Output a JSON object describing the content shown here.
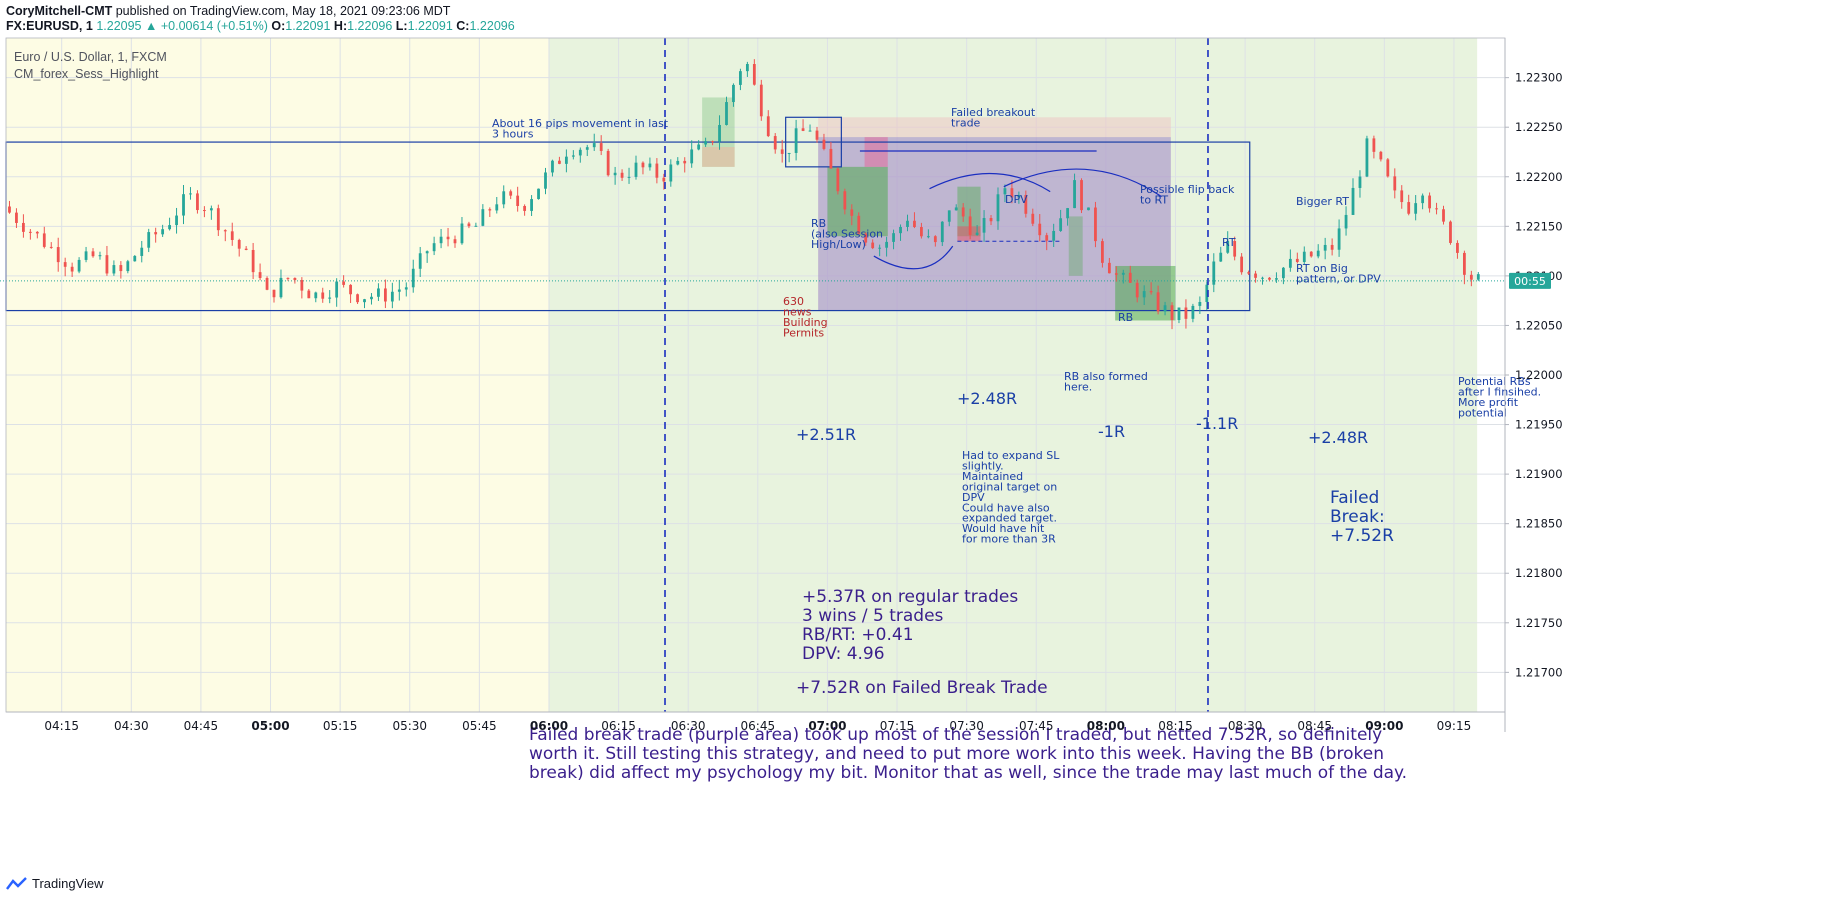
{
  "header": {
    "publisher": "CoryMitchell-CMT",
    "published_text": "published on TradingView.com, May 18, 2021 09:23:06 MDT",
    "symbol": "FX:EURUSD, 1",
    "last": "1.22095",
    "change": "+0.00614 (+0.51%)",
    "o_label": "O:",
    "o": "1.22091",
    "h_label": "H:",
    "h": "1.22096",
    "l_label": "L:",
    "l": "1.22091",
    "c_label": "C:",
    "c": "1.22096"
  },
  "legend": {
    "instrument": "Euro / U.S. Dollar, 1, FXCM",
    "indicator": "CM_forex_Sess_Highlight"
  },
  "footer": {
    "brand": "TradingView"
  },
  "countdown": "00:55",
  "colors": {
    "session_pre": "#fdfce4",
    "session_main": "#e8f3de",
    "candle_up": "#26a69a",
    "candle_down": "#ef5350",
    "annotation_blue": "#1a3fa6",
    "annotation_purple": "#3a1f8c",
    "annotation_red": "#b5262a"
  },
  "chart_data": {
    "type": "candlestick",
    "interval": "1 minute",
    "ylim": [
      1.2166,
      1.2234
    ],
    "yticks": [
      1.223,
      1.2225,
      1.222,
      1.2215,
      1.221,
      1.2205,
      1.22,
      1.2195,
      1.219,
      1.2185,
      1.218,
      1.2175,
      1.217
    ],
    "ytick_labels": [
      "1.22300",
      "1.22250",
      "1.22200",
      "1.22150",
      "1.22100",
      "1.22050",
      "1.22000",
      "1.21950",
      "1.21900",
      "1.21850",
      "1.21800",
      "1.21750",
      "1.21700"
    ],
    "xlim": [
      "04:03",
      "09:26"
    ],
    "xticks": [
      "04:15",
      "04:30",
      "04:45",
      "05:00",
      "05:15",
      "05:30",
      "05:45",
      "06:00",
      "06:15",
      "06:30",
      "06:45",
      "07:00",
      "07:15",
      "07:30",
      "07:45",
      "08:00",
      "08:15",
      "08:30",
      "08:45",
      "09:00",
      "09:15"
    ],
    "current_price": 1.22095,
    "sessions": [
      {
        "from": "04:03",
        "to": "06:00",
        "shade": "pre"
      },
      {
        "from": "06:00",
        "to": "09:20",
        "shade": "main"
      }
    ],
    "price_path": [
      [
        "04:03",
        1.2217
      ],
      [
        "04:08",
        1.2215
      ],
      [
        "04:13",
        1.2213
      ],
      [
        "04:18",
        1.2211
      ],
      [
        "04:23",
        1.2212
      ],
      [
        "04:28",
        1.221
      ],
      [
        "04:33",
        1.2213
      ],
      [
        "04:38",
        1.2215
      ],
      [
        "04:43",
        1.2218
      ],
      [
        "04:47",
        1.2217
      ],
      [
        "04:52",
        1.2214
      ],
      [
        "04:57",
        1.2211
      ],
      [
        "05:00",
        1.2208
      ],
      [
        "05:05",
        1.221
      ],
      [
        "05:10",
        1.2208
      ],
      [
        "05:15",
        1.2209
      ],
      [
        "05:20",
        1.2208
      ],
      [
        "05:25",
        1.2208
      ],
      [
        "05:30",
        1.2209
      ],
      [
        "05:35",
        1.2213
      ],
      [
        "05:40",
        1.2214
      ],
      [
        "05:45",
        1.2215
      ],
      [
        "05:50",
        1.2218
      ],
      [
        "05:55",
        1.2217
      ],
      [
        "06:00",
        1.222
      ],
      [
        "06:05",
        1.2223
      ],
      [
        "06:10",
        1.2223
      ],
      [
        "06:15",
        1.222
      ],
      [
        "06:20",
        1.2221
      ],
      [
        "06:25",
        1.222
      ],
      [
        "06:30",
        1.2222
      ],
      [
        "06:35",
        1.2223
      ],
      [
        "06:38",
        1.2226
      ],
      [
        "06:41",
        1.223
      ],
      [
        "06:43",
        1.2232
      ],
      [
        "06:45",
        1.2229
      ],
      [
        "06:48",
        1.2225
      ],
      [
        "06:51",
        1.2222
      ],
      [
        "06:54",
        1.2224
      ],
      [
        "06:57",
        1.2225
      ],
      [
        "07:00",
        1.2222
      ],
      [
        "07:03",
        1.2219
      ],
      [
        "07:06",
        1.2216
      ],
      [
        "07:09",
        1.2214
      ],
      [
        "07:12",
        1.2213
      ],
      [
        "07:15",
        1.2214
      ],
      [
        "07:18",
        1.2216
      ],
      [
        "07:21",
        1.2214
      ],
      [
        "07:24",
        1.2213
      ],
      [
        "07:27",
        1.2217
      ],
      [
        "07:30",
        1.2216
      ],
      [
        "07:33",
        1.2214
      ],
      [
        "07:36",
        1.2216
      ],
      [
        "07:39",
        1.2219
      ],
      [
        "07:42",
        1.2218
      ],
      [
        "07:45",
        1.2216
      ],
      [
        "07:48",
        1.2214
      ],
      [
        "07:51",
        1.2216
      ],
      [
        "07:54",
        1.2219
      ],
      [
        "07:57",
        1.2216
      ],
      [
        "08:00",
        1.2212
      ],
      [
        "08:03",
        1.221
      ],
      [
        "08:06",
        1.2209
      ],
      [
        "08:09",
        1.2208
      ],
      [
        "08:12",
        1.2207
      ],
      [
        "08:15",
        1.2206
      ],
      [
        "08:18",
        1.2206
      ],
      [
        "08:21",
        1.2207
      ],
      [
        "08:24",
        1.2211
      ],
      [
        "08:27",
        1.2213
      ],
      [
        "08:30",
        1.2211
      ],
      [
        "08:35",
        1.221
      ],
      [
        "08:40",
        1.2211
      ],
      [
        "08:45",
        1.2212
      ],
      [
        "08:50",
        1.2213
      ],
      [
        "08:53",
        1.2217
      ],
      [
        "08:55",
        1.222
      ],
      [
        "08:57",
        1.2223
      ],
      [
        "09:00",
        1.2221
      ],
      [
        "09:03",
        1.2218
      ],
      [
        "09:06",
        1.2217
      ],
      [
        "09:09",
        1.2219
      ],
      [
        "09:12",
        1.2216
      ],
      [
        "09:15",
        1.2214
      ],
      [
        "09:18",
        1.2211
      ],
      [
        "09:20",
        1.22095
      ]
    ],
    "levels": [
      {
        "label": "",
        "price": 1.22235,
        "from": "04:03",
        "to": "08:31",
        "color": "#1a3fa6"
      },
      {
        "label": "",
        "price": 1.22065,
        "from": "04:03",
        "to": "08:31",
        "color": "#1a3fa6"
      }
    ],
    "zones": [
      {
        "from": "06:33",
        "to": "06:40",
        "top": 1.2228,
        "bottom": 1.2221,
        "color": "rgba(140,200,140,0.45)"
      },
      {
        "from": "06:33",
        "to": "06:40",
        "top": 1.2223,
        "bottom": 1.2221,
        "color": "rgba(239,180,160,0.55)"
      },
      {
        "from": "06:58",
        "to": "08:14",
        "top": 1.2226,
        "bottom": 1.22065,
        "color": "rgba(239,190,190,0.45)"
      },
      {
        "from": "06:58",
        "to": "08:14",
        "top": 1.2224,
        "bottom": 1.22065,
        "color": "rgba(120,120,210,0.38)"
      },
      {
        "from": "07:00",
        "to": "07:13",
        "top": 1.2221,
        "bottom": 1.2214,
        "color": "rgba(80,170,80,0.55)"
      },
      {
        "from": "07:08",
        "to": "07:13",
        "top": 1.2224,
        "bottom": 1.2221,
        "color": "rgba(230,100,150,0.5)"
      },
      {
        "from": "07:28",
        "to": "07:33",
        "top": 1.2219,
        "bottom": 1.2214,
        "color": "rgba(80,170,80,0.45)"
      },
      {
        "from": "07:28",
        "to": "07:33",
        "top": 1.2215,
        "bottom": 1.22135,
        "color": "rgba(230,80,100,0.5)"
      },
      {
        "from": "07:52",
        "to": "07:55",
        "top": 1.2216,
        "bottom": 1.221,
        "color": "rgba(80,170,80,0.35)"
      },
      {
        "from": "08:02",
        "to": "08:15",
        "top": 1.2211,
        "bottom": 1.22055,
        "color": "rgba(80,170,80,0.55)"
      }
    ],
    "verticals": [
      "06:25",
      "08:22"
    ],
    "annotations": {
      "pips_note": "About 16 pips movement in last\n3 hours",
      "rb_session": "RB\n(also Session\nHigh/Low)",
      "news": "630\nnews\nBuilding\nPermits",
      "failed_breakout": "Failed breakout\ntrade",
      "dpv": "DPV",
      "flip_back": "Possible flip back\nto RT",
      "bigger_rt": "Bigger RT",
      "rt": "RT",
      "rb": "RB",
      "rt_big": "RT on Big\npattern, or DPV",
      "rb_formed": "RB also formed\nhere.",
      "potential_rbs": "Potential RBs\nafter I finsihed.\nMore profit\npotential",
      "r1": "+2.51R",
      "r2": "+2.48R",
      "r3": "-1R",
      "r4": "-1.1R",
      "r5": "+2.48R",
      "expand_note": "Had to expand SL\nslightly.\nMaintained\noriginal target on\nDPV\nCould have also\nexpanded target.\nWould have hit\nfor more than 3R",
      "failed_break": "Failed\nBreak:\n+7.52R",
      "summary": "+5.37R on regular trades\n3 wins / 5 trades\nRB/RT: +0.41\nDPV: 4.96",
      "failed_break_trade": "+7.52R on Failed Break Trade",
      "commentary": "Failed break trade (purple area) took up most of the session I traded, but netted 7.52R, so definitely\nworth it. Still testing this strategy, and need to put more work into this week. Having the BB (broken\nbreak) did affect my psychology my bit. Monitor that as well, since the trade may last much of the day."
    }
  }
}
